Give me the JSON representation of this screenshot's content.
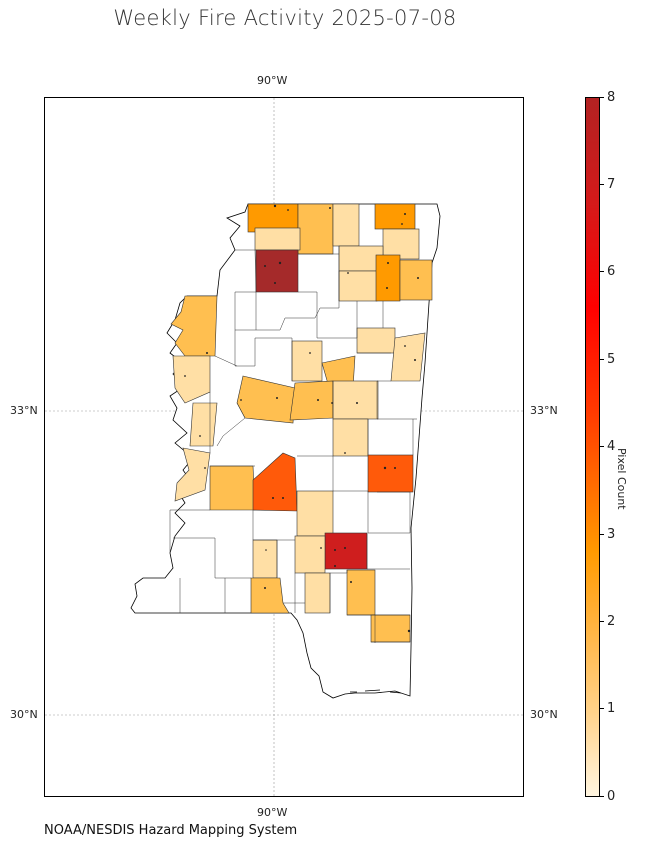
{
  "title": "Weekly Fire Activity 2025-07-08",
  "footer": "NOAA/NESDIS Hazard Mapping System",
  "map": {
    "gridlines": true,
    "lon_label_top": "90°W",
    "lon_label_bottom": "90°W",
    "lat_labels": {
      "upper_left": "33°N",
      "upper_right": "33°N",
      "lower_left": "30°N",
      "lower_right": "30°N"
    }
  },
  "colorbar": {
    "label": "Pixel Count",
    "min": 0,
    "max": 8,
    "ticks": [
      "0",
      "1",
      "2",
      "3",
      "4",
      "5",
      "6",
      "7",
      "8"
    ],
    "colors": {
      "low": "#fff5e0",
      "mid": "#ff9a00",
      "high": "#b22222"
    }
  }
}
